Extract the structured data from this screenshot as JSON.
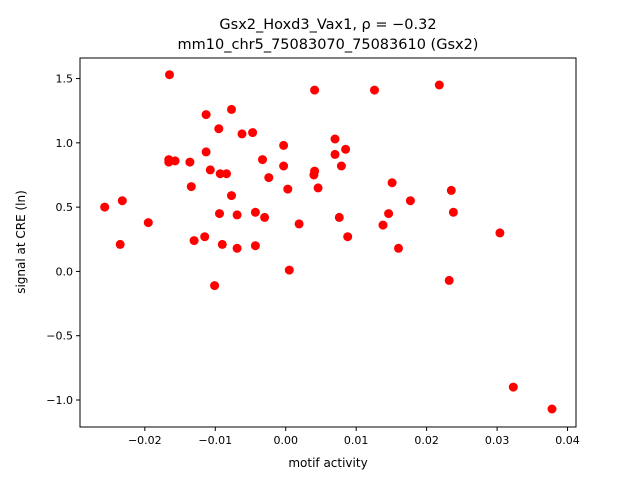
{
  "chart_data": {
    "type": "scatter",
    "title_line1": "Gsx2_Hoxd3_Vax1, ρ = −0.32",
    "title_line2": "mm10_chr5_75083070_75083610 (Gsx2)",
    "xlabel": "motif activity",
    "ylabel": "signal at CRE (ln)",
    "xlim": [
      -0.0292,
      0.0412
    ],
    "ylim": [
      -1.21,
      1.66
    ],
    "xticks": [
      {
        "value": -0.02,
        "label": "−0.02"
      },
      {
        "value": -0.01,
        "label": "−0.01"
      },
      {
        "value": 0.0,
        "label": "0.00"
      },
      {
        "value": 0.01,
        "label": "0.01"
      },
      {
        "value": 0.02,
        "label": "0.02"
      },
      {
        "value": 0.03,
        "label": "0.03"
      },
      {
        "value": 0.04,
        "label": "0.04"
      }
    ],
    "yticks": [
      {
        "value": -1.0,
        "label": "−1.0"
      },
      {
        "value": -0.5,
        "label": "−0.5"
      },
      {
        "value": 0.0,
        "label": "0.0"
      },
      {
        "value": 0.5,
        "label": "0.5"
      },
      {
        "value": 1.0,
        "label": "1.0"
      },
      {
        "value": 1.5,
        "label": "1.5"
      }
    ],
    "grid": false,
    "marker_color": "#ff0000",
    "points": [
      {
        "x": -0.0257,
        "y": 0.5
      },
      {
        "x": -0.0235,
        "y": 0.21
      },
      {
        "x": -0.0232,
        "y": 0.55
      },
      {
        "x": -0.0195,
        "y": 0.38
      },
      {
        "x": -0.0165,
        "y": 1.53
      },
      {
        "x": -0.0166,
        "y": 0.87
      },
      {
        "x": -0.0166,
        "y": 0.85
      },
      {
        "x": -0.0157,
        "y": 0.86
      },
      {
        "x": -0.0136,
        "y": 0.85
      },
      {
        "x": -0.0134,
        "y": 0.66
      },
      {
        "x": -0.013,
        "y": 0.24
      },
      {
        "x": -0.0115,
        "y": 0.27
      },
      {
        "x": -0.0113,
        "y": 1.22
      },
      {
        "x": -0.0113,
        "y": 0.93
      },
      {
        "x": -0.0107,
        "y": 0.79
      },
      {
        "x": -0.0101,
        "y": -0.11
      },
      {
        "x": -0.0095,
        "y": 1.11
      },
      {
        "x": -0.0094,
        "y": 0.45
      },
      {
        "x": -0.0093,
        "y": 0.76
      },
      {
        "x": -0.009,
        "y": 0.21
      },
      {
        "x": -0.0084,
        "y": 0.76
      },
      {
        "x": -0.0077,
        "y": 1.26
      },
      {
        "x": -0.0077,
        "y": 0.59
      },
      {
        "x": -0.0069,
        "y": 0.44
      },
      {
        "x": -0.0069,
        "y": 0.18
      },
      {
        "x": -0.0062,
        "y": 1.07
      },
      {
        "x": -0.0047,
        "y": 1.08
      },
      {
        "x": -0.0043,
        "y": 0.46
      },
      {
        "x": -0.0043,
        "y": 0.2
      },
      {
        "x": -0.0033,
        "y": 0.87
      },
      {
        "x": -0.003,
        "y": 0.42
      },
      {
        "x": -0.0024,
        "y": 0.73
      },
      {
        "x": -0.0003,
        "y": 0.98
      },
      {
        "x": -0.0003,
        "y": 0.82
      },
      {
        "x": 0.0003,
        "y": 0.64
      },
      {
        "x": 0.0005,
        "y": 0.01
      },
      {
        "x": 0.0019,
        "y": 0.37
      },
      {
        "x": 0.0041,
        "y": 1.41
      },
      {
        "x": 0.0041,
        "y": 0.78
      },
      {
        "x": 0.004,
        "y": 0.75
      },
      {
        "x": 0.0046,
        "y": 0.65
      },
      {
        "x": 0.007,
        "y": 1.03
      },
      {
        "x": 0.007,
        "y": 0.91
      },
      {
        "x": 0.0076,
        "y": 0.42
      },
      {
        "x": 0.0079,
        "y": 0.82
      },
      {
        "x": 0.0085,
        "y": 0.95
      },
      {
        "x": 0.0088,
        "y": 0.27
      },
      {
        "x": 0.0126,
        "y": 1.41
      },
      {
        "x": 0.0138,
        "y": 0.36
      },
      {
        "x": 0.0146,
        "y": 0.45
      },
      {
        "x": 0.0151,
        "y": 0.69
      },
      {
        "x": 0.016,
        "y": 0.18
      },
      {
        "x": 0.0177,
        "y": 0.55
      },
      {
        "x": 0.0218,
        "y": 1.45
      },
      {
        "x": 0.0232,
        "y": -0.07
      },
      {
        "x": 0.0235,
        "y": 0.63
      },
      {
        "x": 0.0238,
        "y": 0.46
      },
      {
        "x": 0.0304,
        "y": 0.3
      },
      {
        "x": 0.0323,
        "y": -0.9
      },
      {
        "x": 0.0378,
        "y": -1.07
      }
    ]
  }
}
